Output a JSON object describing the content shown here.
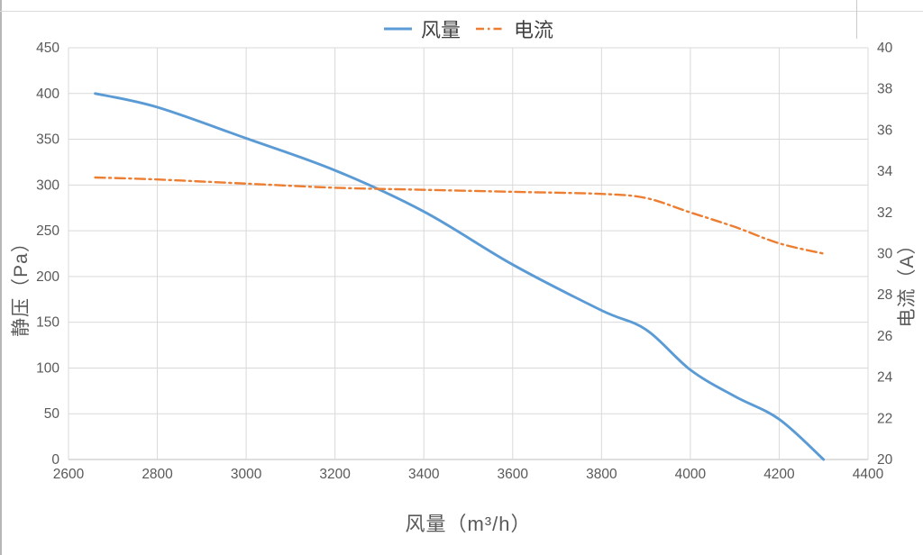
{
  "chart_data": {
    "type": "line",
    "title": "",
    "xlabel": "风量（m³/h）",
    "ylabel_left": "静压（Pa）",
    "ylabel_right": "电流（A）",
    "grid": true,
    "legend_position": "top-center",
    "x_axis": {
      "min": 2600,
      "max": 4400,
      "step": 200,
      "ticks": [
        2600,
        2800,
        3000,
        3200,
        3400,
        3600,
        3800,
        4000,
        4200,
        4400
      ]
    },
    "y_left": {
      "min": 0,
      "max": 450,
      "step": 50,
      "ticks": [
        0,
        50,
        100,
        150,
        200,
        250,
        300,
        350,
        400,
        450
      ]
    },
    "y_right": {
      "min": 20,
      "max": 40,
      "step": 2,
      "ticks": [
        20,
        22,
        24,
        26,
        28,
        30,
        32,
        34,
        36,
        38,
        40
      ]
    },
    "series": [
      {
        "name": "风量",
        "axis": "left",
        "style": "solid",
        "color": "#5B9BD5",
        "x": [
          2660,
          2800,
          3000,
          3200,
          3400,
          3600,
          3800,
          3900,
          4000,
          4100,
          4200,
          4300
        ],
        "values": [
          400,
          385,
          351,
          316,
          271,
          213,
          163,
          142,
          98,
          69,
          44,
          0
        ]
      },
      {
        "name": "电流",
        "axis": "right",
        "style": "dash-dot",
        "color": "#ED7D31",
        "x": [
          2660,
          2800,
          3000,
          3200,
          3400,
          3600,
          3800,
          3900,
          4000,
          4100,
          4200,
          4300
        ],
        "values": [
          33.7,
          33.6,
          33.4,
          33.2,
          33.1,
          33.0,
          32.9,
          32.7,
          32.0,
          31.3,
          30.5,
          30.0
        ]
      }
    ],
    "colors": {
      "grid": "#D9D9D9",
      "axis_line": "#BFBFBF",
      "tick_text": "#595959",
      "title_text": "#595959",
      "legend_text": "#404040"
    }
  }
}
